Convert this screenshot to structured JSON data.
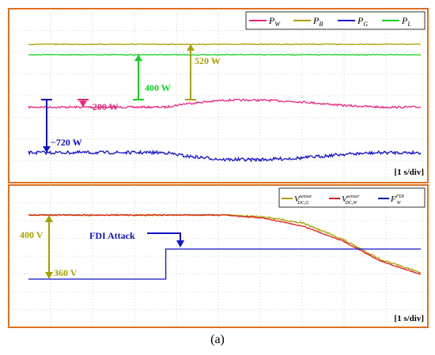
{
  "caption": "(a)",
  "colors": {
    "frame": "#e07020",
    "grid": "#b0b0b0",
    "pw": "#e8247c",
    "pb": "#a8a000",
    "pg": "#1010c8",
    "pl": "#10d020",
    "vg": "#a8a000",
    "vw": "#e02020",
    "fw": "#1010c8"
  },
  "chart_data": [
    {
      "type": "line",
      "title": "",
      "time_division": "[1 s/div]",
      "x": [
        0,
        1,
        2,
        3,
        3.5,
        4,
        5,
        6,
        7,
        8,
        9,
        10
      ],
      "series": [
        {
          "name": "P_W",
          "label_main": "P",
          "label_sub": "W",
          "values": [
            -200,
            -200,
            -200,
            -200,
            -200,
            -160,
            -120,
            -120,
            -140,
            -180,
            -200,
            -200
          ]
        },
        {
          "name": "P_B",
          "label_main": "P",
          "label_sub": "B",
          "values": [
            520,
            520,
            520,
            520,
            520,
            520,
            520,
            520,
            520,
            520,
            520,
            520
          ]
        },
        {
          "name": "P_G",
          "label_main": "P",
          "label_sub": "G",
          "values": [
            -720,
            -720,
            -720,
            -720,
            -720,
            -760,
            -800,
            -800,
            -780,
            -740,
            -720,
            -720
          ]
        },
        {
          "name": "P_L",
          "label_main": "P",
          "label_sub": "L",
          "values": [
            400,
            400,
            400,
            400,
            400,
            400,
            400,
            400,
            400,
            400,
            400,
            400
          ]
        }
      ],
      "annotations": [
        {
          "text": "520 W",
          "series": "P_B"
        },
        {
          "text": "400 W",
          "series": "P_L"
        },
        {
          "text": "−200 W",
          "series": "P_W"
        },
        {
          "text": "−720 W",
          "series": "P_G"
        }
      ],
      "legend": "top-right"
    },
    {
      "type": "line",
      "title": "",
      "time_division": "[1 s/div]",
      "x": [
        0,
        1,
        2,
        3,
        3.5,
        4,
        5,
        6,
        7,
        8,
        9,
        10
      ],
      "series": [
        {
          "name": "V_DC,G^sensor",
          "label_main": "V",
          "label_sub": "DC,G",
          "label_sup": "sensor",
          "values": [
            400,
            400,
            400,
            400,
            400,
            400,
            400,
            399,
            395,
            385,
            372,
            364
          ]
        },
        {
          "name": "V_DC,W^sensor",
          "label_main": "V",
          "label_sub": "DC,W",
          "label_sup": "sensor",
          "values": [
            400,
            400,
            400,
            400,
            400,
            400,
            400,
            398,
            393,
            384,
            371,
            363
          ]
        },
        {
          "name": "F_W^FDI",
          "label_main": "F",
          "label_sub": "W",
          "label_sup": "FDI",
          "values": [
            0,
            0,
            0,
            0,
            0,
            1,
            1,
            1,
            1,
            1,
            1,
            1
          ]
        }
      ],
      "annotations": [
        {
          "text": "400 V"
        },
        {
          "text": "360 V"
        },
        {
          "text": "FDI Attack"
        }
      ],
      "legend": "top-right"
    }
  ]
}
